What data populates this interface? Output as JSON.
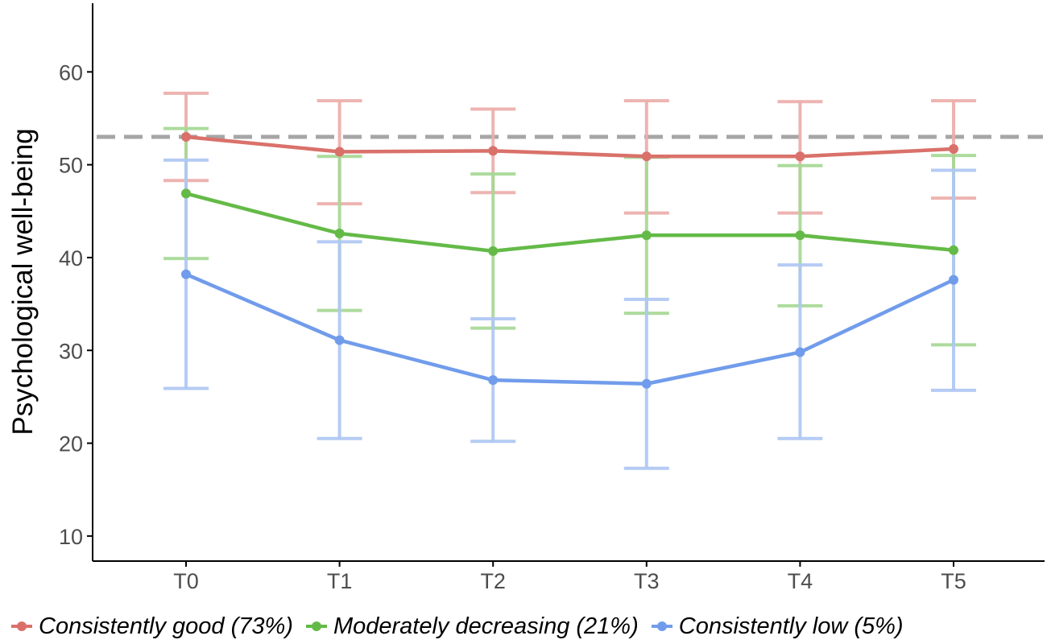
{
  "chart_data": {
    "type": "line",
    "title": "",
    "xlabel": "",
    "ylabel": "Psychological well-being",
    "categories": [
      "T0",
      "T1",
      "T2",
      "T3",
      "T4",
      "T5"
    ],
    "yticks": [
      10,
      20,
      30,
      40,
      50,
      60
    ],
    "ylim": [
      7.3,
      67.4
    ],
    "reference_line": 53,
    "grid": false,
    "legend_position": "bottom",
    "series": [
      {
        "name": "Consistently good (73%)",
        "color": "#D9716A",
        "errorbar_color": "#EBAEAA",
        "values": [
          53.0,
          51.4,
          51.5,
          50.9,
          50.9,
          51.7
        ],
        "lower": [
          48.3,
          45.8,
          47.0,
          44.8,
          44.8,
          46.4
        ],
        "upper": [
          57.7,
          56.9,
          56.0,
          56.9,
          56.8,
          56.9
        ]
      },
      {
        "name": "Moderately decreasing (21%)",
        "color": "#64BA47",
        "errorbar_color": "#A6D895",
        "values": [
          46.9,
          42.6,
          40.7,
          42.4,
          42.4,
          40.8
        ],
        "lower": [
          39.9,
          34.3,
          32.4,
          34.0,
          34.8,
          30.6
        ],
        "upper": [
          53.9,
          50.9,
          49.0,
          50.8,
          49.9,
          51.0
        ]
      },
      {
        "name": "Consistently low (5%)",
        "color": "#719CEB",
        "errorbar_color": "#AFC7F3",
        "values": [
          38.2,
          31.1,
          26.8,
          26.4,
          29.8,
          37.6
        ],
        "lower": [
          25.9,
          20.5,
          20.2,
          17.3,
          20.5,
          25.7
        ],
        "upper": [
          50.5,
          41.7,
          33.4,
          35.5,
          39.2,
          49.4
        ]
      }
    ]
  }
}
